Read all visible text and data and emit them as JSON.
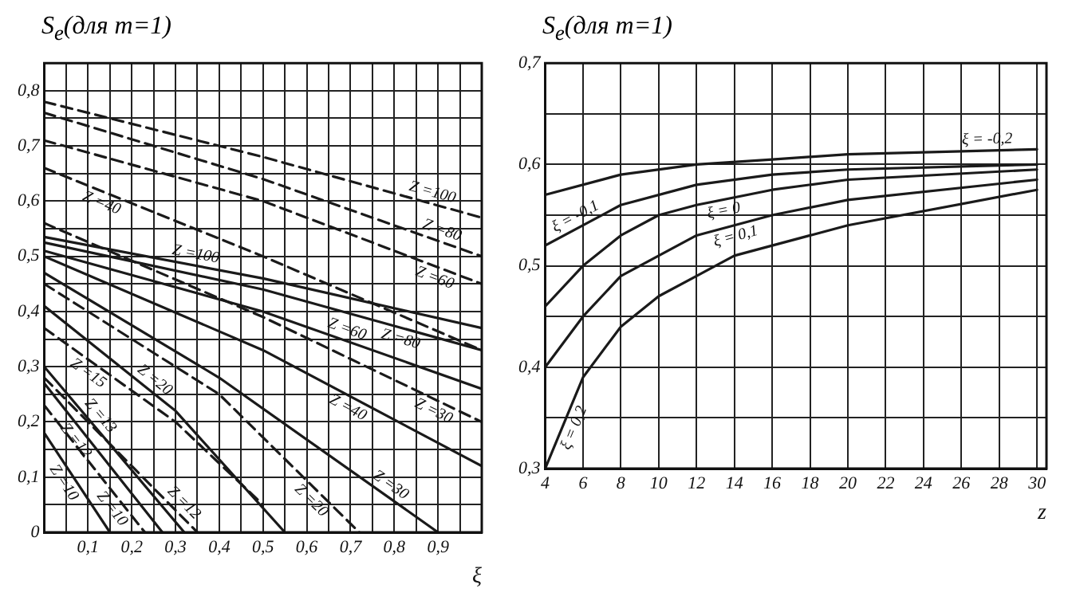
{
  "chart_data": [
    {
      "type": "line",
      "title": "S$_{e}$(для m=1)",
      "xlabel": "ξ",
      "xlim": [
        0,
        1
      ],
      "ylim": [
        0,
        0.85
      ],
      "grid": true,
      "line_style": "solid",
      "xticks": [
        {
          "value": 0,
          "label": null
        },
        {
          "value": 0.05,
          "label": null
        },
        {
          "value": 0.1,
          "label": "0,1"
        },
        {
          "value": 0.15,
          "label": null
        },
        {
          "value": 0.2,
          "label": "0,2"
        },
        {
          "value": 0.25,
          "label": null
        },
        {
          "value": 0.3,
          "label": "0,3"
        },
        {
          "value": 0.35,
          "label": null
        },
        {
          "value": 0.4,
          "label": "0,4"
        },
        {
          "value": 0.45,
          "label": null
        },
        {
          "value": 0.5,
          "label": "0,5"
        },
        {
          "value": 0.55,
          "label": null
        },
        {
          "value": 0.6,
          "label": "0,6"
        },
        {
          "value": 0.65,
          "label": null
        },
        {
          "value": 0.7,
          "label": "0,7"
        },
        {
          "value": 0.75,
          "label": null
        },
        {
          "value": 0.8,
          "label": "0,8"
        },
        {
          "value": 0.85,
          "label": null
        },
        {
          "value": 0.9,
          "label": "0,9"
        },
        {
          "value": 0.95,
          "label": null
        },
        {
          "value": 1,
          "label": null
        }
      ],
      "yticks": [
        0,
        {
          "value": 0.05,
          "label": null
        },
        {
          "value": 0.1,
          "label": "0,1"
        },
        {
          "value": 0.15,
          "label": null
        },
        {
          "value": 0.2,
          "label": "0,2"
        },
        {
          "value": 0.25,
          "label": null
        },
        {
          "value": 0.3,
          "label": "0,3"
        },
        {
          "value": 0.35,
          "label": null
        },
        {
          "value": 0.4,
          "label": "0,4"
        },
        {
          "value": 0.45,
          "label": null
        },
        {
          "value": 0.5,
          "label": "0,5"
        },
        {
          "value": 0.55,
          "label": null
        },
        {
          "value": 0.6,
          "label": "0,6"
        },
        {
          "value": 0.65,
          "label": null
        },
        {
          "value": 0.7,
          "label": "0,7"
        },
        {
          "value": 0.75,
          "label": null
        },
        {
          "value": 0.8,
          "label": "0,8"
        },
        {
          "value": 0.85,
          "label": null
        }
      ],
      "series": [
        {
          "name": "Z =100",
          "color": "#1a1a1a",
          "line_style": "dashed",
          "x": [
            0,
            0.5,
            1
          ],
          "values": [
            0.78,
            0.68,
            0.57
          ]
        },
        {
          "name": "Z =80",
          "color": "#1a1a1a",
          "line_style": "dashed",
          "x": [
            0,
            0.5,
            1
          ],
          "values": [
            0.76,
            0.64,
            0.5
          ]
        },
        {
          "name": "Z =60",
          "color": "#1a1a1a",
          "line_style": "dashed",
          "x": [
            0,
            0.5,
            1
          ],
          "values": [
            0.71,
            0.6,
            0.45
          ]
        },
        {
          "name": "Z =40",
          "color": "#1a1a1a",
          "line_style": "dashed",
          "x": [
            0,
            0.5,
            1
          ],
          "values": [
            0.66,
            0.5,
            0.33
          ]
        },
        {
          "name": "Z =30",
          "color": "#1a1a1a",
          "line_style": "dashed",
          "x": [
            0,
            0.5,
            1
          ],
          "values": [
            0.56,
            0.39,
            0.2
          ]
        },
        {
          "name": "Z =20",
          "color": "#1a1a1a",
          "line_style": "dashed",
          "x": [
            0,
            0.4,
            0.72
          ],
          "values": [
            0.45,
            0.25,
            0
          ]
        },
        {
          "name": "Z =15",
          "color": "#1a1a1a",
          "line_style": "dashed",
          "x": [
            0,
            0.3,
            0.5
          ],
          "values": [
            0.37,
            0.2,
            0.05
          ]
        },
        {
          "name": "Z =12",
          "color": "#1a1a1a",
          "line_style": "dashed",
          "x": [
            0,
            0.35
          ],
          "values": [
            0.28,
            0
          ]
        },
        {
          "name": "Z =10",
          "color": "#1a1a1a",
          "line_style": "dashed",
          "x": [
            0,
            0.23
          ],
          "values": [
            0.23,
            0
          ]
        },
        {
          "name": "Z =100",
          "color": "#1a1a1a",
          "x": [
            0,
            0.5,
            1
          ],
          "values": [
            0.535,
            0.46,
            0.37
          ]
        },
        {
          "name": "Z =80",
          "color": "#1a1a1a",
          "x": [
            0,
            0.5,
            1
          ],
          "values": [
            0.525,
            0.44,
            0.33
          ]
        },
        {
          "name": "Z =60",
          "color": "#1a1a1a",
          "x": [
            0,
            0.5,
            1
          ],
          "values": [
            0.51,
            0.4,
            0.26
          ]
        },
        {
          "name": "Z =40",
          "color": "#1a1a1a",
          "x": [
            0,
            0.5,
            1
          ],
          "values": [
            0.5,
            0.33,
            0.12
          ]
        },
        {
          "name": "Z =30",
          "color": "#1a1a1a",
          "x": [
            0,
            0.4,
            0.9
          ],
          "values": [
            0.47,
            0.28,
            0
          ]
        },
        {
          "name": "Z =20",
          "color": "#1a1a1a",
          "x": [
            0,
            0.3,
            0.55
          ],
          "values": [
            0.41,
            0.22,
            0
          ]
        },
        {
          "name": "Z =13",
          "color": "#1a1a1a",
          "x": [
            0,
            0.32
          ],
          "values": [
            0.3,
            0
          ]
        },
        {
          "name": "Z =12",
          "color": "#1a1a1a",
          "x": [
            0,
            0.27
          ],
          "values": [
            0.27,
            0
          ]
        },
        {
          "name": "Z =10",
          "color": "#1a1a1a",
          "x": [
            0,
            0.15
          ],
          "values": [
            0.18,
            0
          ]
        }
      ]
    },
    {
      "type": "line",
      "title": "S$_{e}$(для m=1)",
      "xlabel": "z",
      "xlim": [
        4,
        30.5
      ],
      "ylim": [
        0.3,
        0.7
      ],
      "grid": true,
      "line_style": "solid",
      "xticks": [
        4,
        6,
        8,
        10,
        12,
        14,
        16,
        18,
        20,
        22,
        24,
        26,
        28,
        30
      ],
      "yticks": [
        {
          "value": 0.3,
          "label": "0,3"
        },
        {
          "value": 0.35,
          "label": null
        },
        {
          "value": 0.4,
          "label": "0,4"
        },
        {
          "value": 0.45,
          "label": null
        },
        {
          "value": 0.5,
          "label": "0,5"
        },
        {
          "value": 0.55,
          "label": null
        },
        {
          "value": 0.6,
          "label": "0,6"
        },
        {
          "value": 0.65,
          "label": null
        },
        {
          "value": 0.7,
          "label": "0,7"
        }
      ],
      "series": [
        {
          "name": "ξ = -0,2",
          "color": "#1a1a1a",
          "x": [
            4,
            8,
            12,
            16,
            20,
            30
          ],
          "values": [
            0.57,
            0.59,
            0.6,
            0.605,
            0.61,
            0.615
          ]
        },
        {
          "name": "ξ = -0,1",
          "color": "#1a1a1a",
          "x": [
            4,
            8,
            12,
            16,
            20,
            30
          ],
          "values": [
            0.52,
            0.56,
            0.58,
            0.59,
            0.595,
            0.6
          ]
        },
        {
          "name": "ξ = 0",
          "color": "#1a1a1a",
          "x": [
            4,
            6,
            8,
            10,
            12,
            16,
            20,
            30
          ],
          "values": [
            0.46,
            0.5,
            0.53,
            0.55,
            0.56,
            0.575,
            0.585,
            0.595
          ]
        },
        {
          "name": "ξ = 0,1",
          "color": "#1a1a1a",
          "x": [
            4,
            6,
            8,
            10,
            12,
            16,
            20,
            30
          ],
          "values": [
            0.4,
            0.45,
            0.49,
            0.51,
            0.53,
            0.55,
            0.565,
            0.585
          ]
        },
        {
          "name": "ξ = 0,2",
          "color": "#1a1a1a",
          "x": [
            4,
            6,
            8,
            10,
            12,
            14,
            16,
            20,
            30
          ],
          "values": [
            0.3,
            0.39,
            0.44,
            0.47,
            0.49,
            0.51,
            0.52,
            0.54,
            0.575
          ]
        }
      ]
    }
  ]
}
